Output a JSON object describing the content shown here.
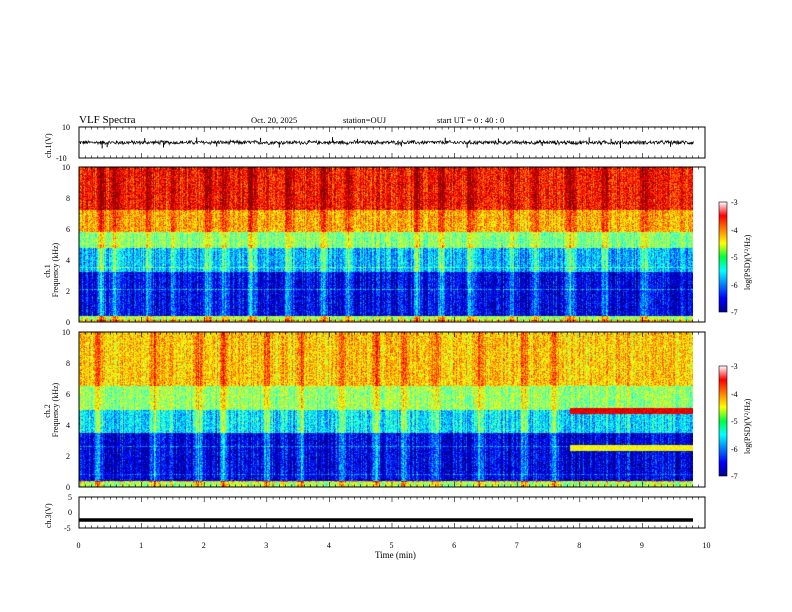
{
  "header": {
    "title": "VLF Spectra",
    "date": "Oct. 20, 2025",
    "station": "station=OUJ",
    "start": "start UT =  0 : 40 : 0"
  },
  "chart_data": [
    {
      "type": "line",
      "panel": "ch1-waveform",
      "ylabel": "ch.1(V)",
      "ylim": [
        -10,
        10
      ],
      "ytick_labels": [
        "10",
        "-10"
      ],
      "xlim": [
        0,
        10
      ],
      "baseline": 0,
      "noise_band": [
        -1.5,
        1.5
      ],
      "spikes": [
        {
          "t": 0.37,
          "v": -3.8
        },
        {
          "t": 0.45,
          "v": -3.0
        },
        {
          "t": 1.05,
          "v": 2.8
        },
        {
          "t": 1.35,
          "v": -3.2
        },
        {
          "t": 1.88,
          "v": 3.2
        },
        {
          "t": 2.2,
          "v": -2.6
        },
        {
          "t": 2.9,
          "v": 3.0
        },
        {
          "t": 3.2,
          "v": -3.3
        },
        {
          "t": 4.05,
          "v": 3.4
        },
        {
          "t": 4.45,
          "v": 2.4
        },
        {
          "t": 5.15,
          "v": -2.5
        },
        {
          "t": 5.85,
          "v": 3.1
        },
        {
          "t": 6.2,
          "v": -3.4
        },
        {
          "t": 6.7,
          "v": 2.6
        },
        {
          "t": 7.4,
          "v": -2.2
        },
        {
          "t": 8.15,
          "v": 3.3
        },
        {
          "t": 8.5,
          "v": 2.4
        },
        {
          "t": 8.65,
          "v": -3.6
        },
        {
          "t": 9.45,
          "v": -2.8
        }
      ]
    },
    {
      "type": "heatmap",
      "panel": "ch1-spectrogram",
      "ylabel": "ch.1\nFrequency (kHz)",
      "ylim": [
        0,
        10
      ],
      "ytick_labels": [
        "0",
        "2",
        "4",
        "6",
        "8",
        "10"
      ],
      "xlim": [
        0,
        9.82
      ],
      "colorbar": {
        "label": "log(PSD)(V²/Hz)",
        "range": [
          -7,
          -3
        ],
        "tick_labels": [
          "-3",
          "-4",
          "-5",
          "-6",
          "-7"
        ]
      },
      "bands_kHz_logpsd": [
        {
          "f0": 0,
          "f1": 0.4,
          "v": -4.8
        },
        {
          "f0": 0.4,
          "f1": 3.2,
          "v": -6.6
        },
        {
          "f0": 3.2,
          "f1": 4.8,
          "v": -5.8
        },
        {
          "f0": 4.8,
          "f1": 5.8,
          "v": -5.0
        },
        {
          "f0": 5.8,
          "f1": 7.2,
          "v": -4.2
        },
        {
          "f0": 7.2,
          "f1": 10,
          "v": -3.6
        }
      ],
      "bright_bursts_min": [
        0.35,
        0.55,
        1.1,
        1.5,
        2.05,
        2.3,
        2.75,
        3.35,
        3.9,
        4.3,
        5.4,
        5.8,
        6.25,
        6.9,
        7.3,
        7.85,
        8.4,
        9.05
      ]
    },
    {
      "type": "heatmap",
      "panel": "ch2-spectrogram",
      "ylabel": "ch.2\nFrequency (kHz)",
      "ylim": [
        0,
        10
      ],
      "ytick_labels": [
        "0",
        "2",
        "4",
        "6",
        "8",
        "10"
      ],
      "xlim": [
        0,
        9.82
      ],
      "colorbar": {
        "label": "log(PSD)(V²/Hz)",
        "range": [
          -7,
          -3
        ],
        "tick_labels": [
          "-3",
          "-4",
          "-5",
          "-6",
          "-7"
        ]
      },
      "bands_kHz_logpsd": [
        {
          "f0": 0,
          "f1": 0.4,
          "v": -4.8
        },
        {
          "f0": 0.4,
          "f1": 3.5,
          "v": -6.6
        },
        {
          "f0": 3.5,
          "f1": 5.0,
          "v": -5.6
        },
        {
          "f0": 5.0,
          "f1": 6.5,
          "v": -4.9
        },
        {
          "f0": 6.5,
          "f1": 10,
          "v": -4.3
        }
      ],
      "tonal_lines": [
        {
          "t0": 7.85,
          "t1": 9.82,
          "f": 4.9,
          "v": -3.4
        },
        {
          "t0": 7.85,
          "t1": 9.82,
          "f": 2.5,
          "v": -4.5
        }
      ],
      "bright_bursts_min": [
        0.3,
        1.2,
        1.9,
        2.3,
        3.0,
        3.55,
        4.2,
        4.75,
        5.2,
        5.7,
        6.4,
        7.1,
        7.6
      ]
    },
    {
      "type": "line",
      "panel": "ch3-waveform",
      "ylabel": "ch.3(V)",
      "ylim": [
        -5,
        5
      ],
      "ytick_labels": [
        "5",
        "0",
        "-5"
      ],
      "xlim": [
        0,
        10
      ],
      "constant_value": -2.4
    }
  ],
  "x_axis": {
    "label": "Time (min)",
    "range": [
      0,
      10
    ],
    "tick_labels": [
      "0",
      "1",
      "2",
      "3",
      "4",
      "5",
      "6",
      "7",
      "8",
      "9",
      "10"
    ]
  }
}
